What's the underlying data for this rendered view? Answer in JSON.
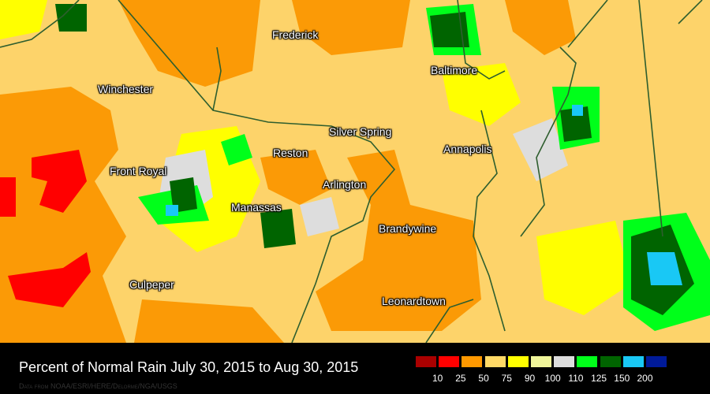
{
  "map": {
    "cities": [
      {
        "name": "Frederick"
      },
      {
        "name": "Winchester"
      },
      {
        "name": "Baltimore"
      },
      {
        "name": "Silver Spring"
      },
      {
        "name": "Reston"
      },
      {
        "name": "Annapolis"
      },
      {
        "name": "Front Royal"
      },
      {
        "name": "Arlington"
      },
      {
        "name": "Manassas"
      },
      {
        "name": "Brandywine"
      },
      {
        "name": "Culpeper"
      },
      {
        "name": "Leonardtown"
      }
    ]
  },
  "footer": {
    "title": "Percent of Normal Rain July 30, 2015 to Aug 30, 2015",
    "credit": "Data from NOAA/ESRI/HERE/Delorme/NGA/USGS"
  },
  "legend": {
    "colors": [
      "#aa0000",
      "#ff0000",
      "#ff9900",
      "#ffd966",
      "#ffff00",
      "#f0f59a",
      "#dddddd",
      "#00ff1a",
      "#006400",
      "#19c8f5",
      "#001a99"
    ],
    "labels": [
      "10",
      "25",
      "50",
      "75",
      "90",
      "100",
      "110",
      "125",
      "150",
      "200"
    ]
  }
}
